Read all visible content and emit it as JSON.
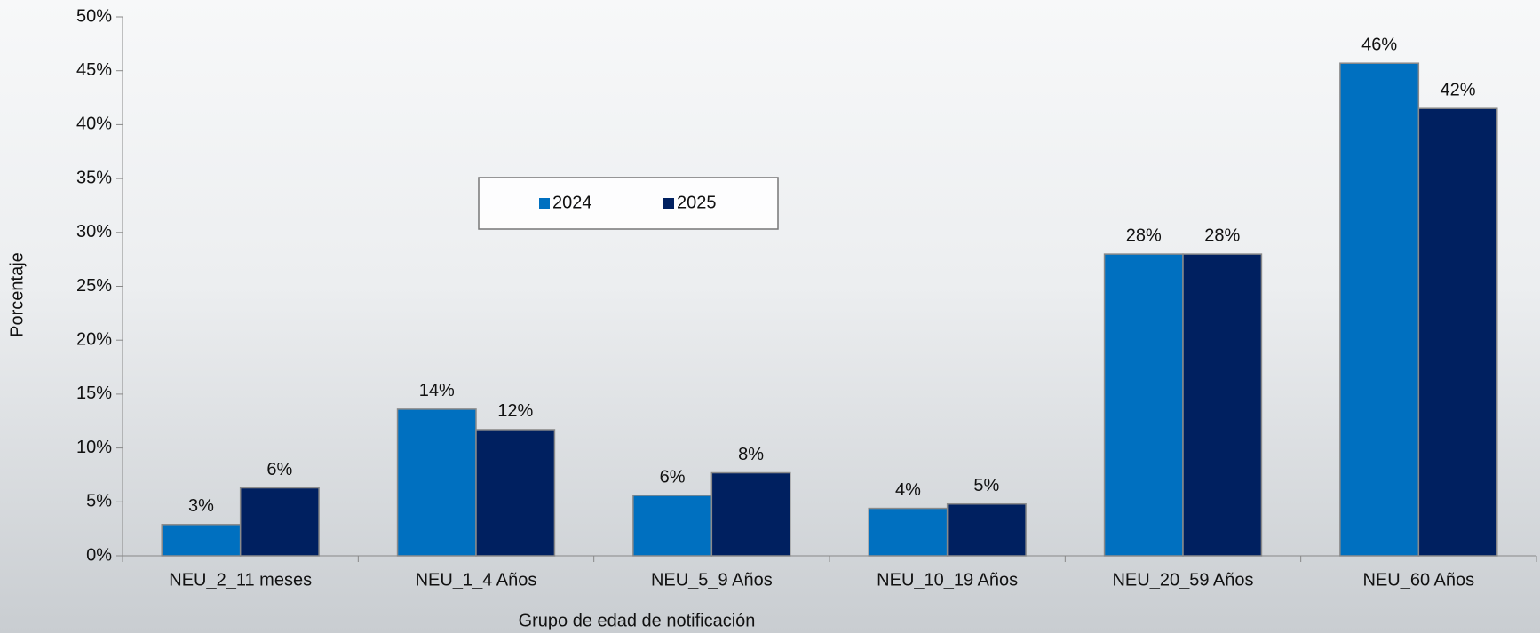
{
  "chart_data": {
    "type": "bar",
    "x_label": "Grupo de edad de notificación",
    "y_label": "Porcentaje",
    "categories": [
      "NEU_2_11 meses",
      "NEU_1_4 Años",
      "NEU_5_9 Años",
      "NEU_10_19 Años",
      "NEU_20_59 Años",
      "NEU_60 Años"
    ],
    "series": [
      {
        "name": "2024",
        "color": "#0070c0",
        "values": [
          2.9,
          13.6,
          5.6,
          4.4,
          28.0,
          45.7
        ],
        "value_labels": [
          "3%",
          "14%",
          "6%",
          "4%",
          "28%",
          "46%"
        ]
      },
      {
        "name": "2025",
        "color": "#002060",
        "values": [
          6.3,
          11.7,
          7.7,
          4.8,
          28.0,
          41.5
        ],
        "value_labels": [
          "6%",
          "12%",
          "8%",
          "5%",
          "28%",
          "42%"
        ]
      }
    ],
    "ylim": [
      0,
      50
    ],
    "yticks": [
      {
        "value": 0,
        "label": "0%"
      },
      {
        "value": 5,
        "label": "5%"
      },
      {
        "value": 10,
        "label": "10%"
      },
      {
        "value": 15,
        "label": "15%"
      },
      {
        "value": 20,
        "label": "20%"
      },
      {
        "value": 25,
        "label": "25%"
      },
      {
        "value": 30,
        "label": "30%"
      },
      {
        "value": 35,
        "label": "35%"
      },
      {
        "value": 40,
        "label": "40%"
      },
      {
        "value": 45,
        "label": "45%"
      },
      {
        "value": 50,
        "label": "50%"
      }
    ],
    "legend": "upper center"
  }
}
